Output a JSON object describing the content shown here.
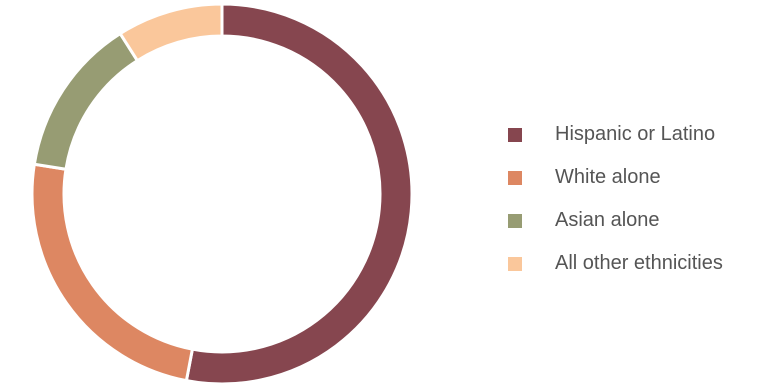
{
  "chart_data": {
    "type": "pie",
    "style": "donut",
    "categories": [
      "Hispanic or Latino",
      "White alone",
      "Asian alone",
      "All other ethnicities"
    ],
    "values": [
      53.0,
      24.5,
      13.5,
      9.0
    ],
    "colors": [
      "#86464f",
      "#dd8762",
      "#979c73",
      "#fac79b"
    ],
    "legend_position": "right",
    "title": ""
  }
}
